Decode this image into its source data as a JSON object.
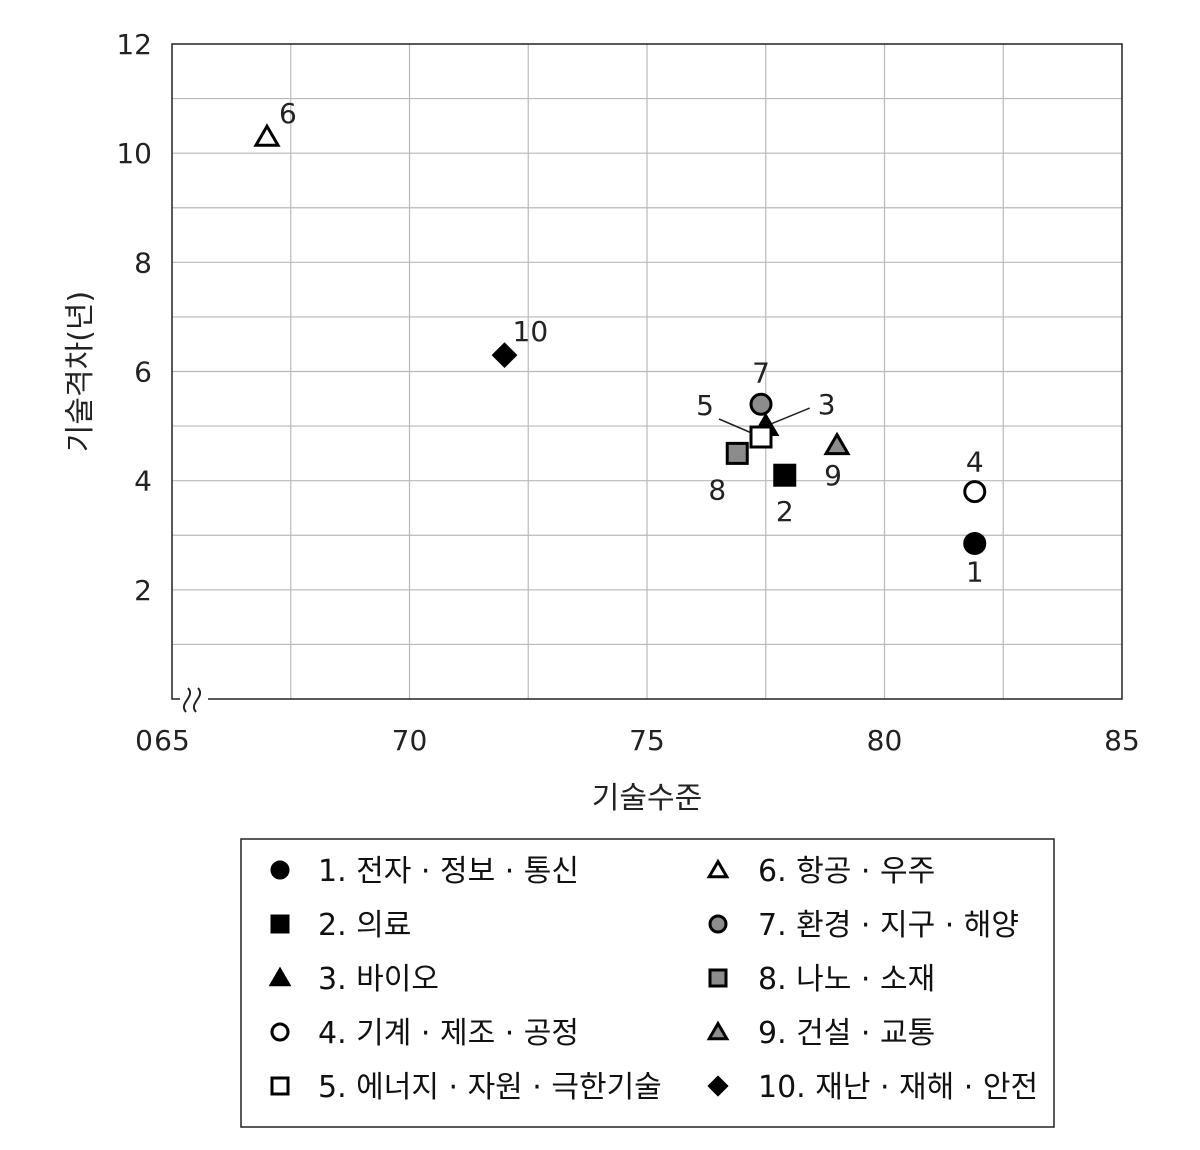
{
  "chart_data": {
    "type": "scatter",
    "title": "",
    "xlabel": "기술수준",
    "ylabel": "기술격차(년)",
    "xlim": [
      65,
      85
    ],
    "ylim": [
      0,
      12
    ],
    "x_ticks": [
      "65",
      "70",
      "75",
      "80",
      "85"
    ],
    "y_ticks": [
      "2",
      "4",
      "6",
      "8",
      "10",
      "12"
    ],
    "origin_label": "0",
    "axis_break": true,
    "grid": true,
    "legend_position": "bottom",
    "series": [
      {
        "id": "1",
        "name": "1. 전자 · 정보 · 통신",
        "marker": "circle",
        "fill": "#000000",
        "x": 81.9,
        "y": 2.85
      },
      {
        "id": "2",
        "name": "2. 의료",
        "marker": "square",
        "fill": "#000000",
        "x": 77.9,
        "y": 4.1
      },
      {
        "id": "3",
        "name": "3. 바이오",
        "marker": "triangle",
        "fill": "#000000",
        "x": 77.5,
        "y": 5.0
      },
      {
        "id": "4",
        "name": "4. 기계 · 제조 · 공정",
        "marker": "circle",
        "fill": "#ffffff",
        "x": 81.9,
        "y": 3.8
      },
      {
        "id": "5",
        "name": "5. 에너지 · 자원 · 극한기술",
        "marker": "square",
        "fill": "#ffffff",
        "x": 77.4,
        "y": 4.8
      },
      {
        "id": "6",
        "name": "6. 항공 · 우주",
        "marker": "triangle",
        "fill": "#ffffff",
        "x": 67.0,
        "y": 10.3
      },
      {
        "id": "7",
        "name": "7. 환경 · 지구 · 해양",
        "marker": "circle",
        "fill": "#8c8c8c",
        "x": 77.4,
        "y": 5.4
      },
      {
        "id": "8",
        "name": "8. 나노 · 소재",
        "marker": "square",
        "fill": "#8c8c8c",
        "x": 76.9,
        "y": 4.5
      },
      {
        "id": "9",
        "name": "9. 건설 · 교통",
        "marker": "triangle",
        "fill": "#8c8c8c",
        "x": 79.0,
        "y": 4.65
      },
      {
        "id": "10",
        "name": "10. 재난 · 재해 · 안전",
        "marker": "diamond",
        "fill": "#000000",
        "x": 72.0,
        "y": 6.3
      }
    ]
  }
}
